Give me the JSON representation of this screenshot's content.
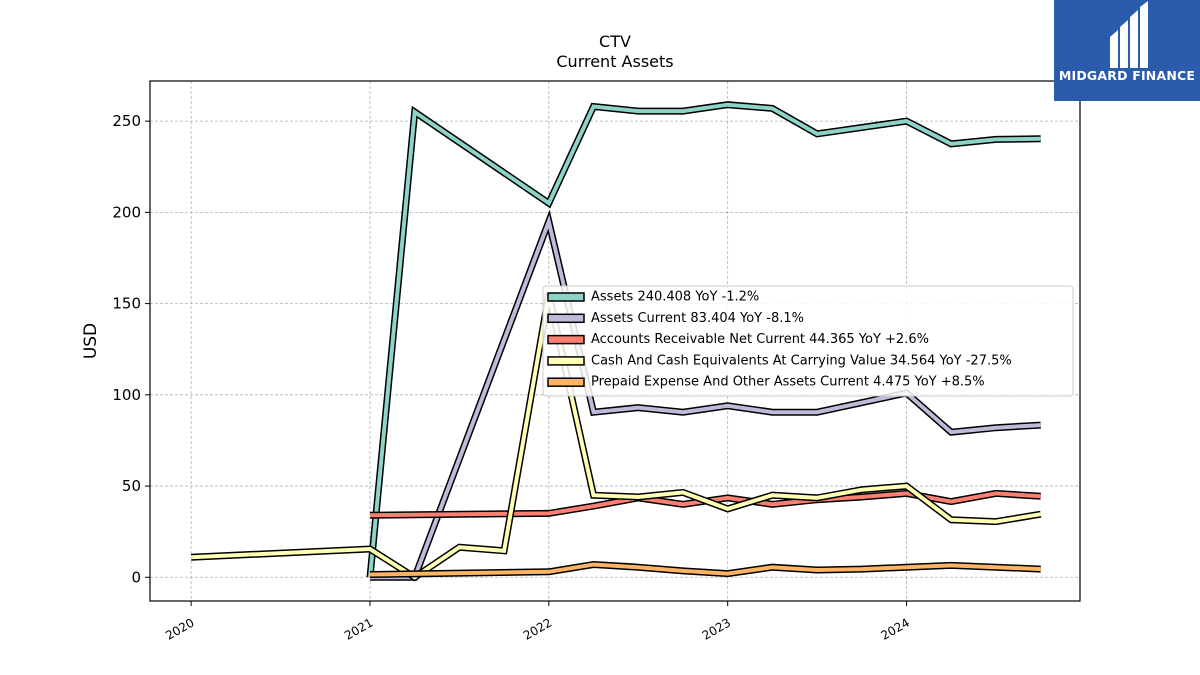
{
  "title": "CTV",
  "subtitle": "Current  Assets",
  "logo": {
    "text": "MIDGARD FINANCE",
    "bg_color": "#2b5bab"
  },
  "chart_data": {
    "type": "line",
    "title": "CTV",
    "subtitle": "Current  Assets",
    "ylabel": "USD",
    "xlabel": "",
    "xlim": [
      2019.77,
      2024.97
    ],
    "ylim": [
      -13,
      272
    ],
    "x_ticks": [
      2020,
      2021,
      2022,
      2023,
      2024
    ],
    "x_tick_labels": [
      "2020",
      "2021",
      "2022",
      "2023",
      "2024"
    ],
    "y_ticks": [
      0,
      50,
      100,
      150,
      200,
      250
    ],
    "y_tick_labels": [
      "0",
      "50",
      "100",
      "150",
      "200",
      "250"
    ],
    "grid": true,
    "legend_position": "center-right",
    "series": [
      {
        "name": "Assets  240.408 YoY -1.2%",
        "color": "#8dd3c7",
        "x": [
          2021.0,
          2021.25,
          2022.0,
          2022.25,
          2022.5,
          2022.75,
          2023.0,
          2023.25,
          2023.5,
          2024.0,
          2024.25,
          2024.5,
          2024.75
        ],
        "y": [
          0,
          255,
          205,
          258,
          255.5,
          255.5,
          259,
          257,
          243,
          250,
          237.5,
          240,
          240.4
        ]
      },
      {
        "name": "Assets Current  83.404 YoY -8.1%",
        "color": "#bebada",
        "x": [
          2021.0,
          2021.25,
          2022.0,
          2022.25,
          2022.5,
          2022.75,
          2023.0,
          2023.25,
          2023.5,
          2024.0,
          2024.25,
          2024.5,
          2024.75
        ],
        "y": [
          0,
          0,
          195,
          90.5,
          93,
          90.5,
          94,
          90.5,
          90.5,
          101,
          79.5,
          82,
          83.4
        ]
      },
      {
        "name": "Accounts Receivable Net Current  44.365 YoY +2.6%",
        "color": "#fb8072",
        "x": [
          2021.0,
          2022.0,
          2022.25,
          2022.5,
          2022.75,
          2023.0,
          2023.25,
          2023.5,
          2023.75,
          2024.0,
          2024.25,
          2024.5,
          2024.75
        ],
        "y": [
          34,
          35,
          39,
          43.5,
          40,
          43.5,
          40,
          42.5,
          44,
          46,
          41.5,
          46,
          44.4
        ]
      },
      {
        "name": "Cash And Cash Equivalents At Carrying Value  34.564 YoY -27.5%",
        "color": "#ffffb3",
        "x": [
          2020.0,
          2021.0,
          2021.25,
          2021.5,
          2021.75,
          2022.0,
          2022.25,
          2022.5,
          2022.75,
          2023.0,
          2023.25,
          2023.5,
          2023.75,
          2024.0,
          2024.25,
          2024.5,
          2024.75
        ],
        "y": [
          11,
          15.5,
          0,
          16.5,
          14.5,
          155,
          45,
          44,
          46.5,
          37.5,
          45,
          43.5,
          48,
          50,
          31.5,
          30.5,
          34.6
        ]
      },
      {
        "name": "Prepaid Expense And Other Assets Current  4.475 YoY +8.5%",
        "color": "#fdb462",
        "x": [
          2021.0,
          2022.0,
          2022.25,
          2022.5,
          2022.75,
          2023.0,
          2023.25,
          2023.5,
          2023.75,
          2024.0,
          2024.25,
          2024.5,
          2024.75
        ],
        "y": [
          1.5,
          3,
          7,
          5.5,
          3.5,
          2,
          5.5,
          4,
          4.5,
          5.5,
          6.5,
          5.5,
          4.5
        ]
      }
    ]
  }
}
